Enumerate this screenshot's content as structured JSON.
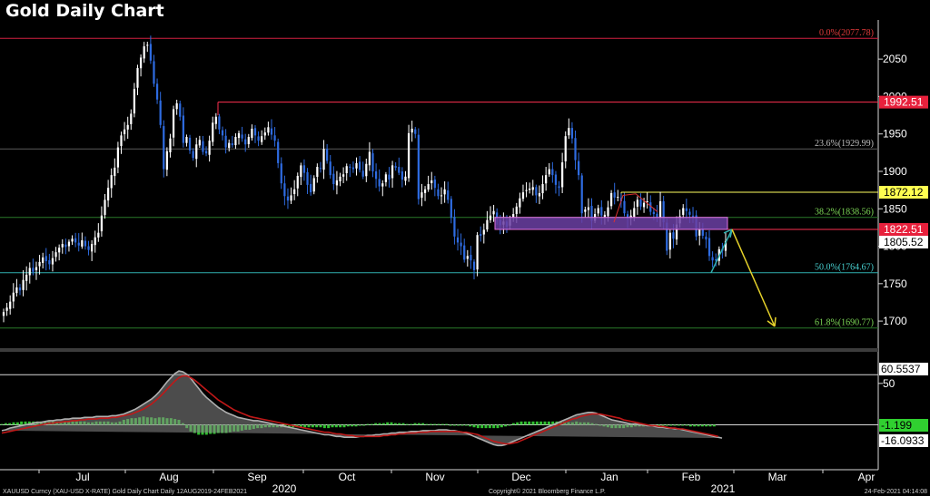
{
  "title": "Gold Daily Chart",
  "footer": {
    "left": "XAUUSD Curncy (XAU-USD X-RATE) Gold Daily Chart  Daily 12AUG2019-24FEB2021",
    "center": "Copyright© 2021 Bloomberg Finance L.P.",
    "right": "24-Feb-2021 04:14:08"
  },
  "colors": {
    "up": "#ffffff",
    "down": "#2e6be0",
    "fib_line": "#7a1f1f",
    "fib_100": "#d02040",
    "resist_yellow": "#ffff60",
    "support_red": "#ff3050",
    "green_line": "#2a7a2a",
    "cyan_line": "#30b0b0",
    "arrow_yellow": "#e6d22a",
    "zone_fill": "#6b3fa3",
    "macd_gray": "#b0b0b0",
    "macd_red": "#c01818",
    "hist_green": "#30c030"
  },
  "chart_data": [
    {
      "type": "candlestick",
      "title": "Gold Daily Chart",
      "x_months": [
        "Jul",
        "Aug",
        "Sep",
        "Oct",
        "Nov",
        "Dec",
        "Jan",
        "Feb",
        "Mar",
        "Apr"
      ],
      "x_years": [
        "2020",
        "2021"
      ],
      "y_ticks": [
        1700,
        1750,
        1800,
        1850,
        1900,
        1950,
        2000,
        2050
      ],
      "ylim": [
        1665,
        2095
      ],
      "closes": [
        1712,
        1718,
        1726,
        1738,
        1745,
        1741,
        1755,
        1762,
        1771,
        1766,
        1772,
        1779,
        1785,
        1780,
        1776,
        1784,
        1792,
        1798,
        1803,
        1799,
        1806,
        1810,
        1805,
        1801,
        1808,
        1800,
        1795,
        1803,
        1812,
        1818,
        1841,
        1862,
        1878,
        1895,
        1905,
        1932,
        1948,
        1956,
        1962,
        1977,
        2010,
        2038,
        2052,
        2067,
        2069,
        2048,
        2017,
        1996,
        1962,
        1903,
        1927,
        1944,
        1983,
        1991,
        1973,
        1938,
        1946,
        1928,
        1918,
        1936,
        1942,
        1926,
        1924,
        1941,
        1965,
        1973,
        1956,
        1948,
        1932,
        1938,
        1935,
        1946,
        1951,
        1944,
        1936,
        1946,
        1957,
        1948,
        1941,
        1947,
        1952,
        1959,
        1949,
        1941,
        1911,
        1884,
        1867,
        1861,
        1868,
        1876,
        1894,
        1908,
        1898,
        1882,
        1872,
        1891,
        1906,
        1904,
        1930,
        1914,
        1895,
        1883,
        1888,
        1893,
        1896,
        1907,
        1905,
        1903,
        1911,
        1902,
        1893,
        1910,
        1926,
        1900,
        1890,
        1880,
        1884,
        1896,
        1889,
        1908,
        1905,
        1898,
        1889,
        1893,
        1951,
        1957,
        1950,
        1863,
        1872,
        1876,
        1883,
        1888,
        1878,
        1867,
        1868,
        1876,
        1862,
        1838,
        1813,
        1805,
        1800,
        1782,
        1787,
        1781,
        1768,
        1815,
        1814,
        1822,
        1835,
        1841,
        1847,
        1837,
        1828,
        1833,
        1826,
        1837,
        1843,
        1853,
        1864,
        1872,
        1875,
        1877,
        1879,
        1868,
        1871,
        1883,
        1895,
        1903,
        1895,
        1882,
        1878,
        1912,
        1947,
        1958,
        1944,
        1915,
        1895,
        1844,
        1849,
        1852,
        1834,
        1843,
        1851,
        1841,
        1842,
        1852,
        1871,
        1865,
        1866,
        1860,
        1844,
        1837,
        1841,
        1851,
        1862,
        1853,
        1858,
        1860,
        1846,
        1843,
        1839,
        1860,
        1832,
        1794,
        1818,
        1810,
        1829,
        1840,
        1851,
        1847,
        1842,
        1840,
        1813,
        1823,
        1814,
        1809,
        1787,
        1781,
        1781,
        1796,
        1794,
        1807
      ],
      "first_close_x": 4,
      "last_close_x": 799,
      "levels": [
        {
          "label": "0.0%(2077.78)",
          "value": 2077.78
        },
        {
          "label": "23.6%(1929.99)",
          "value": 1929.99
        },
        {
          "label": "38.2%(1838.56)",
          "value": 1838.56
        },
        {
          "label": "50.0%(1764.67)",
          "value": 1764.67
        },
        {
          "label": "61.8%(1690.77)",
          "value": 1690.77
        }
      ],
      "boxed_labels": [
        {
          "label": "1992.51",
          "value": 1992.51
        },
        {
          "label": "1872.12",
          "value": 1872.12
        },
        {
          "label": "1822.51",
          "value": 1822.51
        },
        {
          "label": "1805.52",
          "value": 1805.52
        }
      ],
      "support_zone": [
        1822.51,
        1838.56
      ],
      "projection": [
        [
          1764.67,
          1822.51
        ],
        [
          1822.51,
          1693
        ]
      ]
    },
    {
      "type": "line",
      "subtype": "macd",
      "y_ticks": [
        50
      ],
      "ylim": [
        -40,
        75
      ],
      "zero_line": 0,
      "macd_line": [
        -7,
        -6,
        -4,
        -3,
        -2,
        -1,
        0,
        1,
        2,
        3,
        3,
        4,
        5,
        5,
        6,
        6,
        7,
        7,
        8,
        8,
        8,
        9,
        9,
        9,
        10,
        10,
        10,
        10,
        11,
        11,
        12,
        13,
        15,
        17,
        19,
        22,
        25,
        28,
        31,
        35,
        40,
        46,
        52,
        57,
        62,
        65,
        64,
        61,
        56,
        50,
        44,
        38,
        33,
        29,
        25,
        21,
        18,
        15,
        13,
        11,
        9,
        8,
        7,
        6,
        5,
        5,
        4,
        3,
        2,
        1,
        0,
        -1,
        -2,
        -3,
        -4,
        -5,
        -6,
        -7,
        -8,
        -9,
        -10,
        -11,
        -12,
        -12,
        -13,
        -14,
        -14,
        -15,
        -15,
        -15,
        -15,
        -14,
        -14,
        -13,
        -13,
        -12,
        -12,
        -11,
        -11,
        -10,
        -10,
        -9,
        -9,
        -9,
        -8,
        -8,
        -8,
        -7,
        -7,
        -7,
        -7,
        -6,
        -6,
        -6,
        -7,
        -7,
        -8,
        -9,
        -10,
        -12,
        -14,
        -16,
        -18,
        -20,
        -22,
        -24,
        -25,
        -25,
        -24,
        -22,
        -20,
        -18,
        -16,
        -14,
        -12,
        -10,
        -8,
        -6,
        -4,
        -2,
        0,
        2,
        4,
        6,
        8,
        10,
        12,
        13,
        14,
        15,
        15,
        14,
        12,
        10,
        8,
        6,
        5,
        4,
        3,
        2,
        1,
        1,
        0,
        0,
        -1,
        -1,
        -2,
        -3,
        -3,
        -4,
        -4,
        -5,
        -5,
        -6,
        -7,
        -8,
        -9,
        -10,
        -11,
        -12,
        -13,
        -14,
        -15,
        -16
      ],
      "signal_line": [
        -10,
        -9,
        -8,
        -7,
        -6,
        -5,
        -4,
        -3,
        -2,
        -1,
        0,
        1,
        2,
        2,
        3,
        3,
        4,
        4,
        5,
        5,
        6,
        6,
        7,
        7,
        7,
        8,
        8,
        8,
        9,
        9,
        10,
        11,
        12,
        13,
        15,
        17,
        19,
        22,
        25,
        29,
        33,
        38,
        43,
        48,
        53,
        57,
        59,
        59,
        57,
        54,
        50,
        46,
        42,
        38,
        34,
        30,
        27,
        24,
        21,
        18,
        16,
        14,
        12,
        10,
        9,
        8,
        7,
        6,
        5,
        4,
        3,
        2,
        1,
        0,
        -1,
        -2,
        -3,
        -4,
        -5,
        -6,
        -7,
        -8,
        -9,
        -9,
        -10,
        -11,
        -11,
        -12,
        -13,
        -13,
        -14,
        -14,
        -14,
        -14,
        -14,
        -14,
        -14,
        -13,
        -13,
        -12,
        -12,
        -11,
        -11,
        -10,
        -10,
        -10,
        -9,
        -9,
        -9,
        -8,
        -8,
        -8,
        -8,
        -8,
        -8,
        -8,
        -8,
        -9,
        -9,
        -10,
        -11,
        -12,
        -14,
        -16,
        -18,
        -20,
        -21,
        -22,
        -23,
        -23,
        -22,
        -21,
        -19,
        -17,
        -15,
        -13,
        -11,
        -9,
        -7,
        -5,
        -3,
        -1,
        1,
        3,
        5,
        7,
        8,
        10,
        11,
        12,
        13,
        13,
        13,
        12,
        11,
        10,
        9,
        8,
        6,
        5,
        4,
        3,
        2,
        1,
        0,
        -1,
        -1,
        -2,
        -2,
        -3,
        -4,
        -4,
        -5,
        -5,
        -6,
        -7,
        -8,
        -9,
        -10,
        -11,
        -12,
        -13,
        -14
      ],
      "histogram": [
        1,
        2,
        2,
        3,
        3,
        4,
        4,
        4,
        4,
        4,
        4,
        4,
        4,
        4,
        4,
        4,
        4,
        4,
        4,
        4,
        4,
        4,
        3,
        3,
        4,
        4,
        4,
        4,
        3,
        3,
        4,
        6,
        7,
        8,
        8,
        9,
        10,
        9,
        9,
        8,
        9,
        9,
        8,
        8,
        7,
        6,
        2,
        -4,
        -8,
        -10,
        -12,
        -12,
        -12,
        -11,
        -11,
        -10,
        -10,
        -10,
        -9,
        -8,
        -8,
        -7,
        -6,
        -6,
        -5,
        -4,
        -4,
        -3,
        -3,
        -3,
        -3,
        -3,
        -3,
        -3,
        -3,
        -3,
        -3,
        -3,
        -3,
        -3,
        -3,
        -3,
        -4,
        -4,
        -3,
        -3,
        -3,
        -3,
        -2,
        -2,
        -2,
        -1,
        0,
        1,
        1,
        2,
        2,
        2,
        3,
        3,
        2,
        2,
        2,
        1,
        1,
        2,
        2,
        2,
        1,
        1,
        1,
        1,
        1,
        1,
        -1,
        -1,
        -1,
        -1,
        -1,
        -2,
        -3,
        -4,
        -4,
        -4,
        -4,
        -4,
        -4,
        -3,
        -2,
        -1,
        2,
        3,
        4,
        4,
        4,
        4,
        4,
        4,
        4,
        4,
        4,
        4,
        4,
        4,
        3,
        3,
        4,
        3,
        3,
        3,
        2,
        1,
        -1,
        -2,
        -3,
        -4,
        -4,
        -4,
        -4,
        -3,
        -3,
        -2,
        -2,
        -2,
        -1,
        -1,
        -1,
        -1,
        -1,
        -1,
        -1,
        -1,
        -1,
        -1,
        -1,
        -2,
        -2,
        -2,
        -2,
        -2,
        -2,
        -2
      ],
      "boxed_labels": [
        {
          "label": "60.5537",
          "value": 60.5537
        },
        {
          "label": "-1.199",
          "value": -1.199
        },
        {
          "label": "-16.0933",
          "value": -16.0933
        }
      ]
    }
  ]
}
